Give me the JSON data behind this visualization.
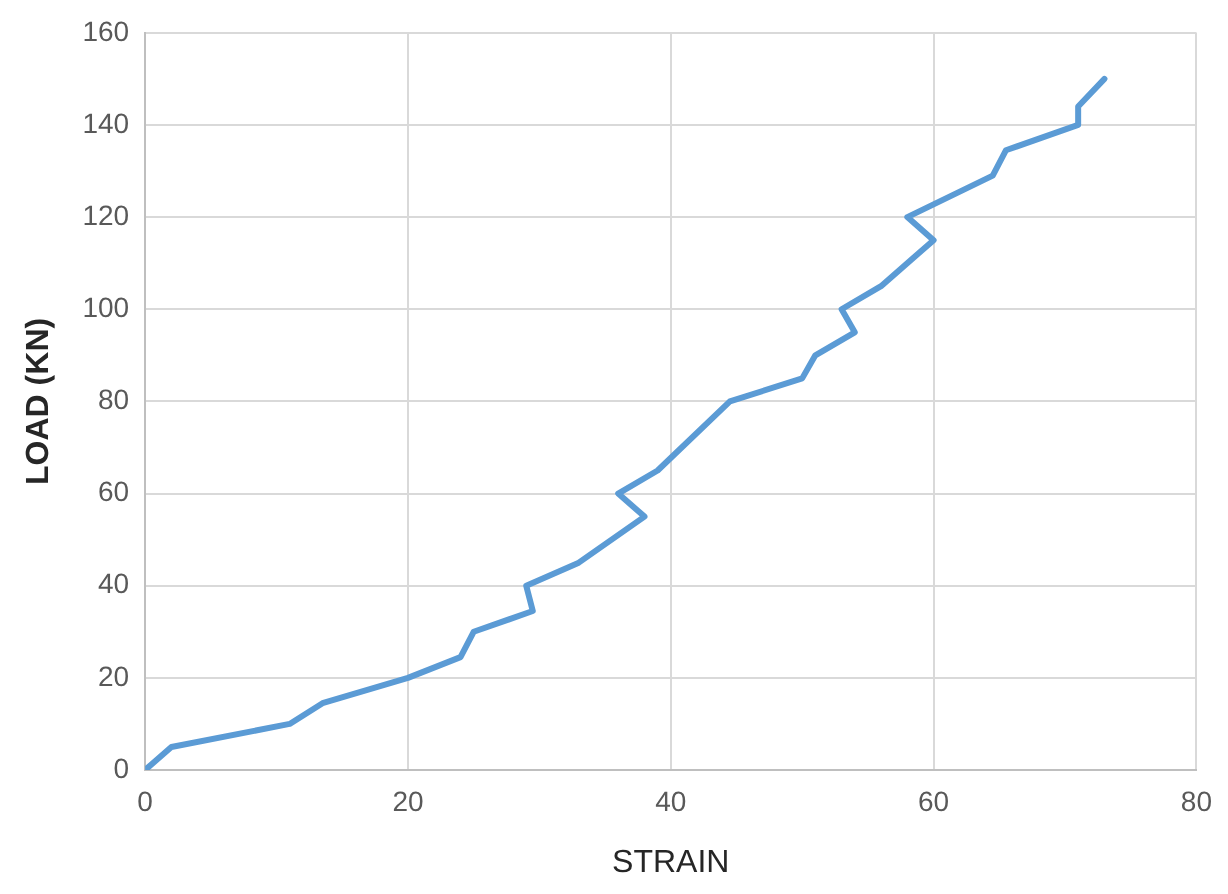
{
  "chart_data": {
    "type": "line",
    "xlabel": "STRAIN",
    "ylabel": "LOAD (KN)",
    "series": [
      {
        "color": "#5b9bd5",
        "x": [
          0,
          2,
          11,
          13.5,
          20,
          24,
          25,
          29.5,
          29,
          33,
          38,
          36,
          39,
          44.5,
          50,
          51,
          54,
          53,
          56,
          60,
          58,
          64.5,
          65.5,
          71,
          71,
          73
        ],
        "values": [
          0,
          5,
          10,
          14.5,
          20,
          24.5,
          30,
          34.5,
          40,
          45,
          55,
          60,
          65,
          80,
          85,
          90,
          95,
          100,
          105,
          115,
          120,
          129,
          134.5,
          140,
          144,
          150
        ]
      }
    ],
    "xlim": [
      0,
      80
    ],
    "xticks": [
      0,
      20,
      40,
      60,
      80
    ],
    "ylim": [
      0,
      160
    ],
    "yticks": [
      0,
      20,
      40,
      60,
      80,
      100,
      120,
      140,
      160
    ],
    "grid": true,
    "legend": false,
    "marker": "none",
    "line_style": "solid"
  }
}
